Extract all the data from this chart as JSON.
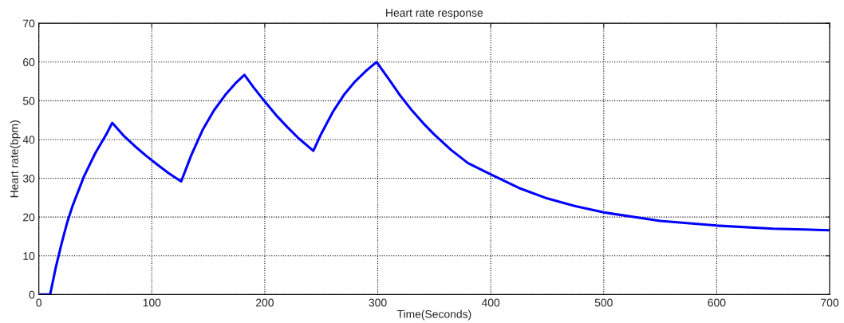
{
  "chart_data": {
    "type": "line",
    "title": "Heart rate response",
    "xlabel": "Time(Seconds)",
    "ylabel": "Heart rate(bpm)",
    "xlim": [
      0,
      700
    ],
    "xticks": [
      0,
      100,
      200,
      300,
      400,
      500,
      600,
      700
    ],
    "ylim": [
      0,
      70
    ],
    "yticks": [
      0,
      10,
      20,
      30,
      40,
      50,
      60,
      70
    ],
    "grid": true,
    "line_style": "solid",
    "marker": "none",
    "series": [
      {
        "color": "#0000ff",
        "x": [
          0,
          10,
          15,
          20,
          25,
          30,
          40,
          50,
          60,
          65,
          75,
          85,
          95,
          105,
          115,
          126,
          135,
          145,
          155,
          165,
          175,
          182,
          190,
          200,
          210,
          220,
          230,
          243,
          250,
          260,
          270,
          280,
          290,
          299,
          310,
          320,
          330,
          340,
          350,
          365,
          380,
          400,
          425,
          450,
          475,
          500,
          550,
          600,
          650,
          700
        ],
        "values": [
          0,
          0,
          7,
          13,
          18.5,
          23,
          30.5,
          36.5,
          41.5,
          44.3,
          41,
          38.3,
          35.8,
          33.5,
          31.3,
          29.2,
          36,
          42.5,
          47.5,
          51.5,
          54.8,
          56.7,
          53.5,
          49.8,
          46.3,
          43.2,
          40.3,
          37.1,
          41.5,
          47,
          51.5,
          55,
          57.8,
          60,
          55.5,
          51.3,
          47.6,
          44.3,
          41.3,
          37.3,
          33.9,
          31,
          27.5,
          24.8,
          22.8,
          21.2,
          19,
          17.8,
          17,
          16.6
        ]
      }
    ]
  }
}
